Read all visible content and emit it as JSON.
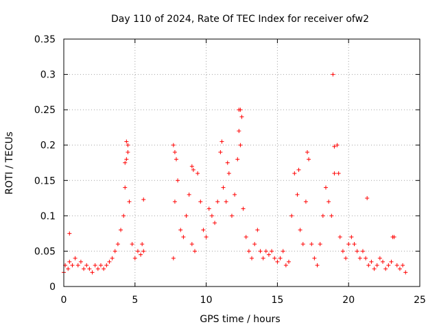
{
  "chart_data": {
    "type": "scatter",
    "title": "Day 110 of 2024, Rate Of TEC Index for receiver ofw2",
    "xlabel": "GPS time / hours",
    "ylabel": "ROTI / TECUs",
    "xlim": [
      0,
      25
    ],
    "ylim": [
      0,
      0.35
    ],
    "xticks": [
      0,
      5,
      10,
      15,
      20,
      25
    ],
    "xtick_labels": [
      "0",
      "5",
      "10",
      "15",
      "20",
      "25"
    ],
    "yticks": [
      0,
      0.05,
      0.1,
      0.15,
      0.2,
      0.25,
      0.3,
      0.35
    ],
    "ytick_labels": [
      "0",
      "0.05",
      "0.1",
      "0.15",
      "0.2",
      "0.25",
      "0.3",
      "0.35"
    ],
    "grid": true,
    "marker": "+",
    "colors": {
      "points": "#ff0000",
      "grid": "#a0a0a0",
      "axes": "#000000"
    },
    "series": [
      {
        "x": [
          0.0,
          0.1,
          0.3,
          0.4,
          0.6,
          0.8,
          1.0,
          1.2,
          1.4,
          1.6,
          1.8,
          2.0,
          2.2,
          2.4,
          2.6,
          2.8,
          3.0,
          3.2,
          3.4,
          3.6,
          3.8,
          4.0,
          4.2,
          4.3,
          4.4,
          4.5,
          4.6,
          4.8,
          5.0,
          5.2,
          5.4,
          5.5,
          5.6,
          7.7,
          7.8,
          7.9,
          8.0,
          8.2,
          8.4,
          8.6,
          8.8,
          9.0,
          9.2,
          9.4,
          9.6,
          9.8,
          10.0,
          10.2,
          10.4,
          10.6,
          10.8,
          11.0,
          11.2,
          11.4,
          11.6,
          11.8,
          12.0,
          12.2,
          12.3,
          12.4,
          12.6,
          12.8,
          13.0,
          13.2,
          13.4,
          13.6,
          13.8,
          14.0,
          14.2,
          14.4,
          14.6,
          14.8,
          15.0,
          15.2,
          15.4,
          15.6,
          15.8,
          16.0,
          16.2,
          16.4,
          16.6,
          16.8,
          17.0,
          17.2,
          17.4,
          17.6,
          17.8,
          18.0,
          18.2,
          18.4,
          18.6,
          18.8,
          19.0,
          19.2,
          19.4,
          19.6,
          19.8,
          20.0,
          20.2,
          20.4,
          20.6,
          20.8,
          21.0,
          21.2,
          21.4,
          21.6,
          21.8,
          22.0,
          22.2,
          22.4,
          22.6,
          22.8,
          23.0,
          23.2,
          23.4,
          23.6,
          23.8,
          24.0,
          0.4,
          4.4,
          4.5,
          4.3,
          5.6,
          7.7,
          7.8,
          9.0,
          9.1,
          11.1,
          11.5,
          12.3,
          12.4,
          12.5,
          17.1,
          18.9,
          19.0,
          19.3,
          21.3,
          23.1,
          16.5
        ],
        "y": [
          0.02,
          0.03,
          0.025,
          0.035,
          0.03,
          0.04,
          0.03,
          0.035,
          0.025,
          0.03,
          0.025,
          0.02,
          0.03,
          0.025,
          0.03,
          0.025,
          0.03,
          0.035,
          0.04,
          0.05,
          0.06,
          0.08,
          0.1,
          0.14,
          0.18,
          0.2,
          0.12,
          0.06,
          0.04,
          0.05,
          0.045,
          0.06,
          0.05,
          0.04,
          0.12,
          0.18,
          0.15,
          0.08,
          0.07,
          0.1,
          0.13,
          0.06,
          0.05,
          0.16,
          0.12,
          0.08,
          0.07,
          0.11,
          0.1,
          0.09,
          0.12,
          0.19,
          0.14,
          0.12,
          0.16,
          0.1,
          0.13,
          0.18,
          0.25,
          0.2,
          0.11,
          0.07,
          0.05,
          0.04,
          0.06,
          0.08,
          0.05,
          0.04,
          0.05,
          0.045,
          0.05,
          0.04,
          0.035,
          0.04,
          0.05,
          0.03,
          0.035,
          0.1,
          0.16,
          0.13,
          0.08,
          0.06,
          0.12,
          0.18,
          0.06,
          0.04,
          0.03,
          0.06,
          0.1,
          0.14,
          0.12,
          0.1,
          0.16,
          0.2,
          0.07,
          0.05,
          0.04,
          0.06,
          0.07,
          0.06,
          0.05,
          0.04,
          0.05,
          0.04,
          0.03,
          0.035,
          0.025,
          0.03,
          0.04,
          0.035,
          0.025,
          0.03,
          0.035,
          0.07,
          0.03,
          0.025,
          0.03,
          0.02,
          0.075,
          0.205,
          0.19,
          0.175,
          0.123,
          0.2,
          0.19,
          0.17,
          0.165,
          0.205,
          0.175,
          0.22,
          0.25,
          0.24,
          0.19,
          0.3,
          0.198,
          0.16,
          0.125,
          0.07,
          0.165
        ]
      }
    ]
  }
}
